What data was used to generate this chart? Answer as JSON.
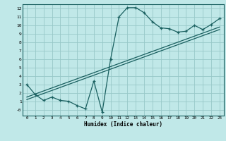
{
  "xlabel": "Humidex (Indice chaleur)",
  "bg_color": "#c0e8e8",
  "grid_color": "#98c8c8",
  "line_color": "#1a6060",
  "xlim": [
    -0.5,
    23.5
  ],
  "ylim": [
    -0.7,
    12.5
  ],
  "xticks": [
    0,
    1,
    2,
    3,
    4,
    5,
    6,
    7,
    8,
    9,
    10,
    11,
    12,
    13,
    14,
    15,
    16,
    17,
    18,
    19,
    20,
    21,
    22,
    23
  ],
  "yticks": [
    0,
    1,
    2,
    3,
    4,
    5,
    6,
    7,
    8,
    9,
    10,
    11,
    12
  ],
  "ytick_labels": [
    "-0",
    "1",
    "2",
    "3",
    "4",
    "5",
    "6",
    "7",
    "8",
    "9",
    "10",
    "11",
    "12"
  ],
  "curve_x": [
    0,
    1,
    2,
    3,
    4,
    5,
    6,
    7,
    8,
    9,
    10,
    11,
    12,
    13,
    14,
    15,
    16,
    17,
    18,
    19,
    20,
    21,
    22,
    23
  ],
  "curve_y": [
    3.0,
    1.8,
    1.1,
    1.5,
    1.1,
    1.0,
    0.5,
    0.1,
    3.4,
    -0.3,
    6.0,
    11.0,
    12.1,
    12.1,
    11.5,
    10.4,
    9.7,
    9.6,
    9.2,
    9.3,
    10.0,
    9.5,
    10.1,
    10.8
  ],
  "ref_line1_x": [
    0,
    23
  ],
  "ref_line1_y": [
    1.5,
    9.8
  ],
  "ref_line2_x": [
    0,
    23
  ],
  "ref_line2_y": [
    1.2,
    9.5
  ]
}
